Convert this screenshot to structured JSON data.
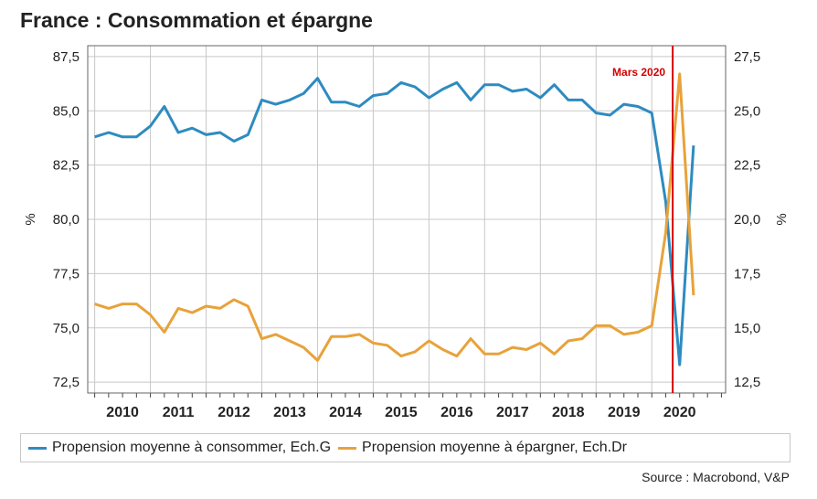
{
  "title": "France : Consommation et épargne",
  "source": "Source : Macrobond, V&P",
  "legend": {
    "consommer": "Propension moyenne à consommer, Ech.G",
    "epargner": "Propension moyenne à épargner, Ech.Dr"
  },
  "colors": {
    "consommer": "#2e8bc0",
    "epargner": "#e8a23a",
    "marker": "#d40000",
    "grid": "#c8c8c8"
  },
  "chart_data": {
    "type": "line",
    "title": "France : Consommation et épargne",
    "x_start": 2009.625,
    "x_step": 0.25,
    "x_range": [
      2009.5,
      2020.95
    ],
    "x_ticks": [
      2010,
      2011,
      2012,
      2013,
      2014,
      2015,
      2016,
      2017,
      2018,
      2019,
      2020
    ],
    "left_axis": {
      "label": "%",
      "range": [
        72.0,
        88.0
      ],
      "ticks": [
        "72,5",
        "75,0",
        "77,5",
        "80,0",
        "82,5",
        "85,0",
        "87,5"
      ],
      "tick_values": [
        72.5,
        75,
        77.5,
        80,
        82.5,
        85,
        87.5
      ]
    },
    "right_axis": {
      "label": "%",
      "range": [
        12.0,
        28.0
      ],
      "ticks": [
        "12,5",
        "15,0",
        "17,5",
        "20,0",
        "22,5",
        "25,0",
        "27,5"
      ],
      "tick_values": [
        12.5,
        15,
        17.5,
        20,
        22.5,
        25,
        27.5
      ]
    },
    "annotation": {
      "label": "Mars 2020",
      "x": 2020.0
    },
    "series": [
      {
        "name": "Propension moyenne à consommer, Ech.G",
        "axis": "left",
        "values": [
          83.8,
          84.0,
          83.8,
          83.8,
          84.3,
          85.2,
          84.0,
          84.2,
          83.9,
          84.0,
          83.6,
          83.9,
          85.5,
          85.3,
          85.5,
          85.8,
          86.5,
          85.4,
          85.4,
          85.2,
          85.7,
          85.8,
          86.3,
          86.1,
          85.6,
          86.0,
          86.3,
          85.5,
          86.2,
          86.2,
          85.9,
          86.0,
          85.6,
          86.2,
          85.5,
          85.5,
          84.9,
          84.8,
          85.3,
          85.2,
          84.9,
          80.8,
          73.3,
          83.4
        ]
      },
      {
        "name": "Propension moyenne à épargner, Ech.Dr",
        "axis": "right",
        "values": [
          16.1,
          15.9,
          16.1,
          16.1,
          15.6,
          14.8,
          15.9,
          15.7,
          16.0,
          15.9,
          16.3,
          16.0,
          14.5,
          14.7,
          14.4,
          14.1,
          13.5,
          14.6,
          14.6,
          14.7,
          14.3,
          14.2,
          13.7,
          13.9,
          14.4,
          14.0,
          13.7,
          14.5,
          13.8,
          13.8,
          14.1,
          14.0,
          14.3,
          13.8,
          14.4,
          14.5,
          15.1,
          15.1,
          14.7,
          14.8,
          15.1,
          19.4,
          26.7,
          16.5
        ]
      }
    ]
  }
}
